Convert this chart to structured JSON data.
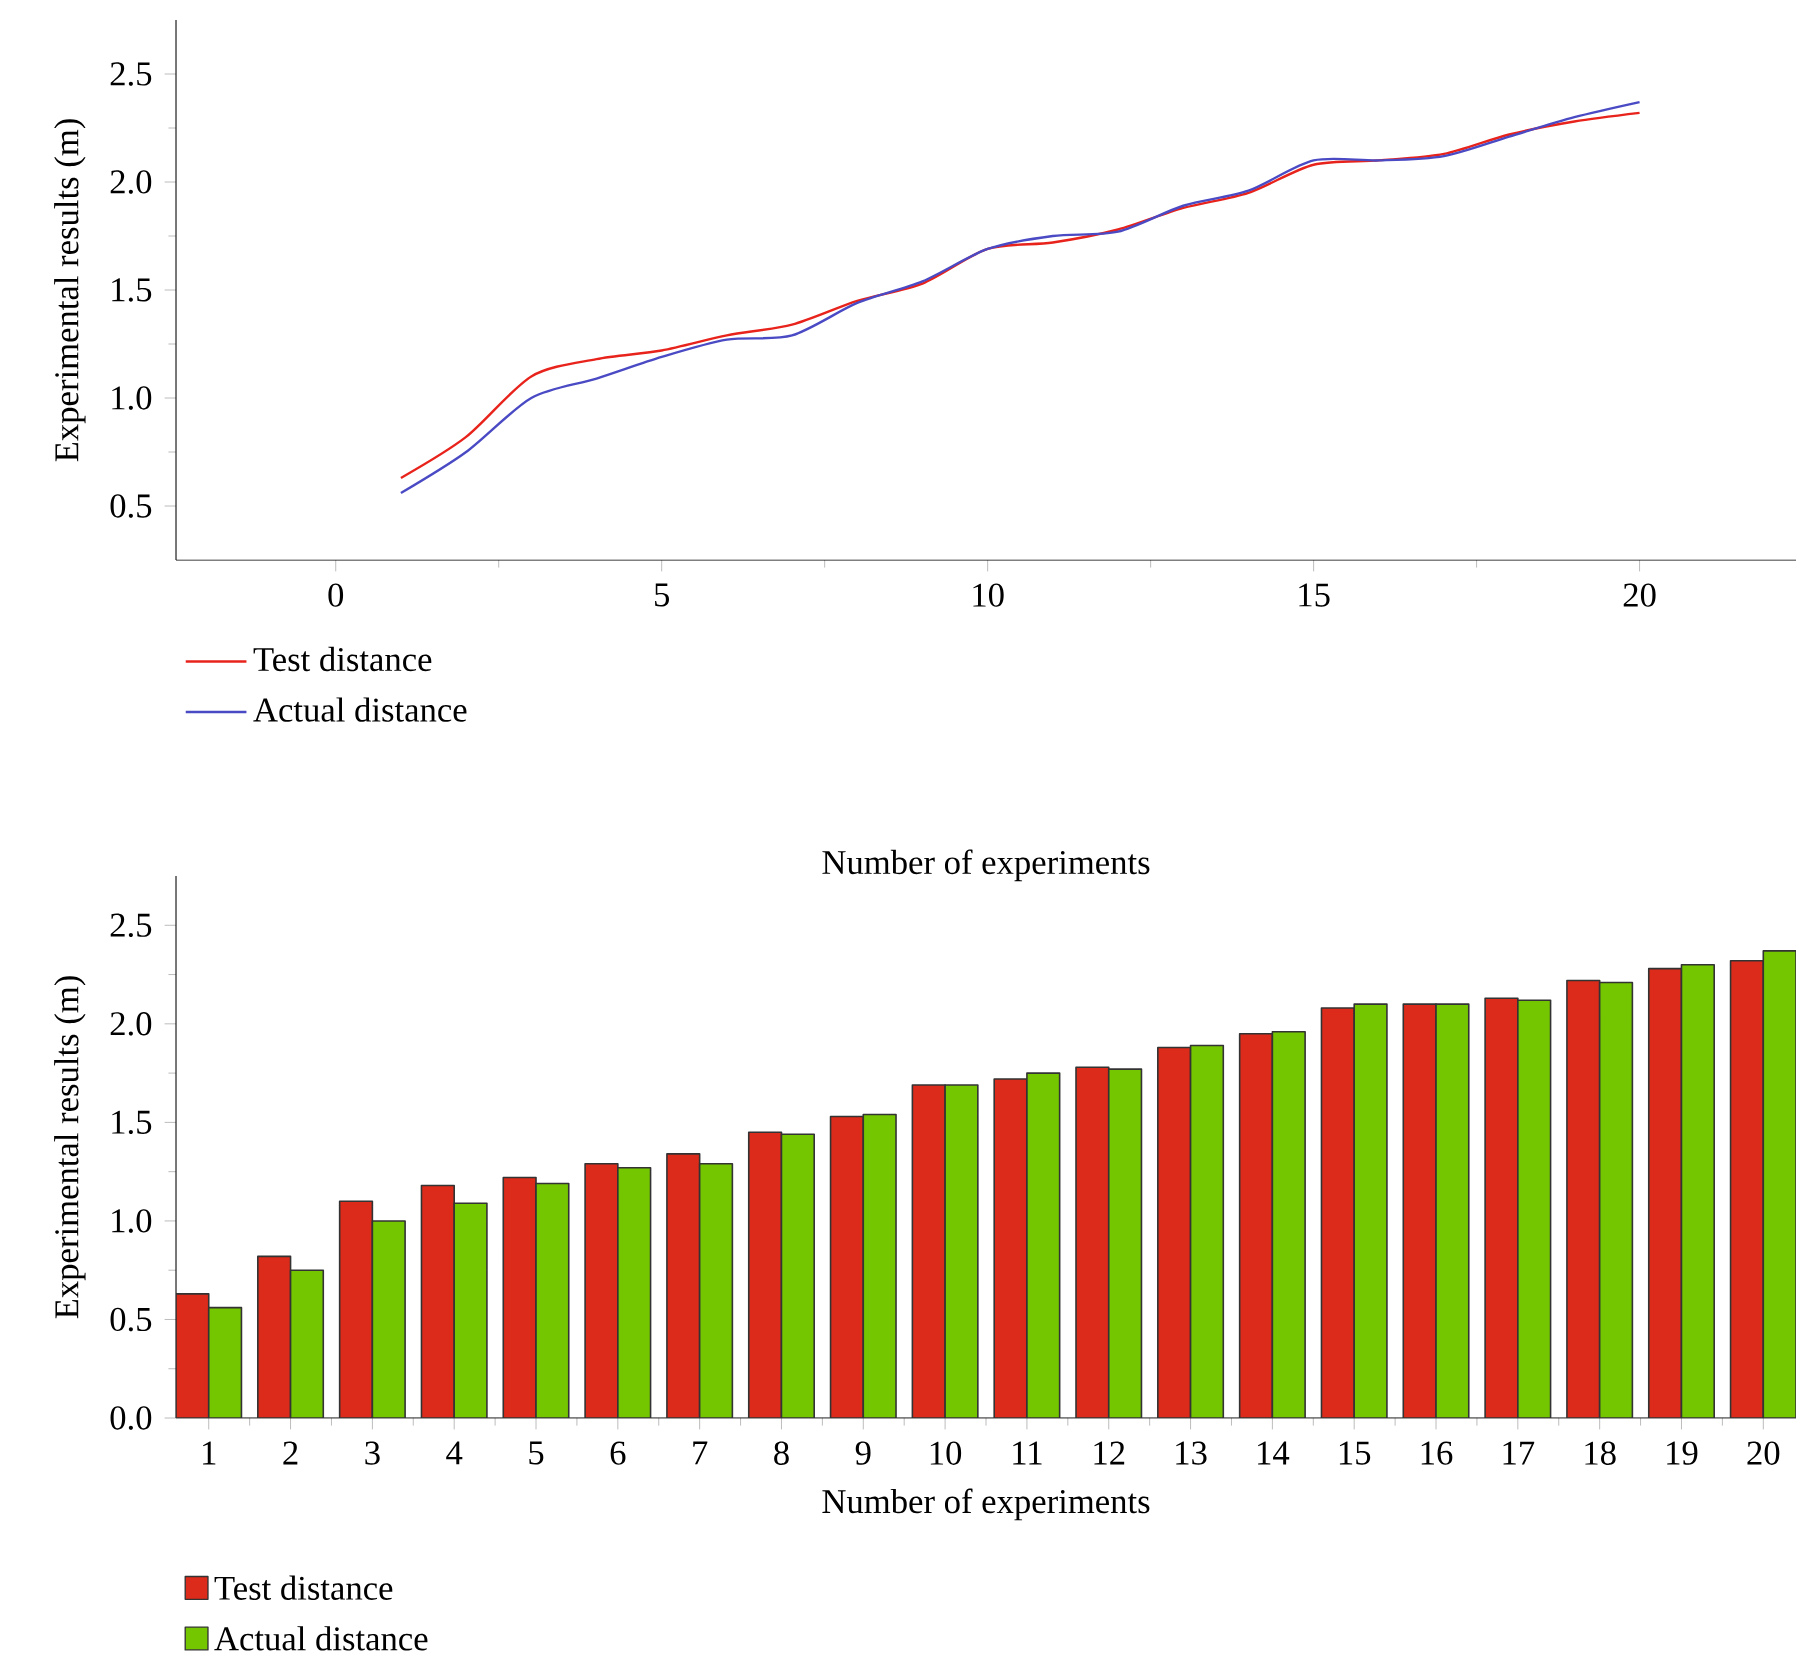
{
  "chart_data": [
    {
      "type": "line",
      "xlabel": "Number of experiments",
      "ylabel": "Experimental results (m)",
      "x": [
        1,
        2,
        3,
        4,
        5,
        6,
        7,
        8,
        9,
        10,
        11,
        12,
        13,
        14,
        15,
        16,
        17,
        18,
        19,
        20
      ],
      "series": [
        {
          "name": "Test distance",
          "color": "#e8231c",
          "values": [
            0.63,
            0.82,
            1.1,
            1.18,
            1.22,
            1.29,
            1.34,
            1.45,
            1.53,
            1.69,
            1.72,
            1.78,
            1.88,
            1.95,
            2.08,
            2.1,
            2.13,
            2.22,
            2.28,
            2.32
          ]
        },
        {
          "name": "Actual distance",
          "color": "#4a4ac4",
          "values": [
            0.56,
            0.75,
            1.0,
            1.09,
            1.19,
            1.27,
            1.29,
            1.44,
            1.54,
            1.69,
            1.75,
            1.77,
            1.89,
            1.96,
            2.1,
            2.1,
            2.12,
            2.21,
            2.3,
            2.37
          ]
        }
      ],
      "xlim": [
        -2.45,
        22.4
      ],
      "xticks": [
        0,
        5,
        10,
        15,
        20
      ],
      "ylim": [
        0.25,
        2.75
      ],
      "yticks": [
        {
          "value": 0.5,
          "label": "0.5"
        },
        {
          "value": 1.0,
          "label": "1.0"
        },
        {
          "value": 1.5,
          "label": "1.5"
        },
        {
          "value": 2.0,
          "label": "2.0"
        },
        {
          "value": 2.5,
          "label": "2.5"
        }
      ],
      "legend": "bottom left"
    },
    {
      "type": "bar",
      "xlabel": "Number of experiments",
      "ylabel": "Experimental results (m)",
      "categories": [
        "1",
        "2",
        "3",
        "4",
        "5",
        "6",
        "7",
        "8",
        "9",
        "10",
        "11",
        "12",
        "13",
        "14",
        "15",
        "16",
        "17",
        "18",
        "19",
        "20"
      ],
      "series": [
        {
          "name": "Test distance",
          "color": "#dc2b1a",
          "values": [
            0.63,
            0.82,
            1.1,
            1.18,
            1.22,
            1.29,
            1.34,
            1.45,
            1.53,
            1.69,
            1.72,
            1.78,
            1.88,
            1.95,
            2.08,
            2.1,
            2.13,
            2.22,
            2.28,
            2.32
          ]
        },
        {
          "name": "Actual distance",
          "color": "#74c600",
          "values": [
            0.56,
            0.75,
            1.0,
            1.09,
            1.19,
            1.27,
            1.29,
            1.44,
            1.54,
            1.69,
            1.75,
            1.77,
            1.89,
            1.96,
            2.1,
            2.1,
            2.12,
            2.21,
            2.3,
            2.37
          ]
        }
      ],
      "ylim": [
        0,
        2.75
      ],
      "yticks": [
        {
          "value": 0,
          "label": "0.0"
        },
        {
          "value": 0.5,
          "label": "0.5"
        },
        {
          "value": 1.0,
          "label": "1.0"
        },
        {
          "value": 1.5,
          "label": "1.5"
        },
        {
          "value": 2.0,
          "label": "2.0"
        },
        {
          "value": 2.5,
          "label": "2.5"
        }
      ],
      "legend": "bottom left"
    }
  ]
}
